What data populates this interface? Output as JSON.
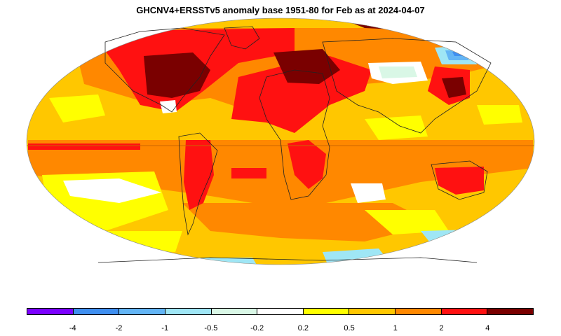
{
  "title": "GHCNV4+ERSSTv5 anomaly base 1951-80 for Feb as at 2024-04-07",
  "legend": {
    "colors": [
      "#7b00ff",
      "#3f8ff0",
      "#63b5f5",
      "#9fe6f5",
      "#d9f7e6",
      "#ffffff",
      "#ffff00",
      "#ffc700",
      "#ff8800",
      "#ff1111",
      "#7a0000"
    ],
    "tick_labels": [
      "-4",
      "-2",
      "-1",
      "-0.5",
      "-0.2",
      "0.2",
      "0.5",
      "1",
      "2",
      "4"
    ]
  },
  "map": {
    "projection": "Robinson-like",
    "palette": {
      "light_orange": "#ffc700",
      "orange": "#ff8800",
      "red": "#ff1111",
      "dark_red": "#7a0000",
      "yellow": "#ffff00",
      "white": "#ffffff",
      "pale": "#d9f7e6",
      "cyan": "#9fe6f5",
      "light_blue": "#63b5f5",
      "blue": "#3f8ff0",
      "violet": "#7b00ff",
      "equator": "#cc6600",
      "coast": "#222222"
    }
  }
}
